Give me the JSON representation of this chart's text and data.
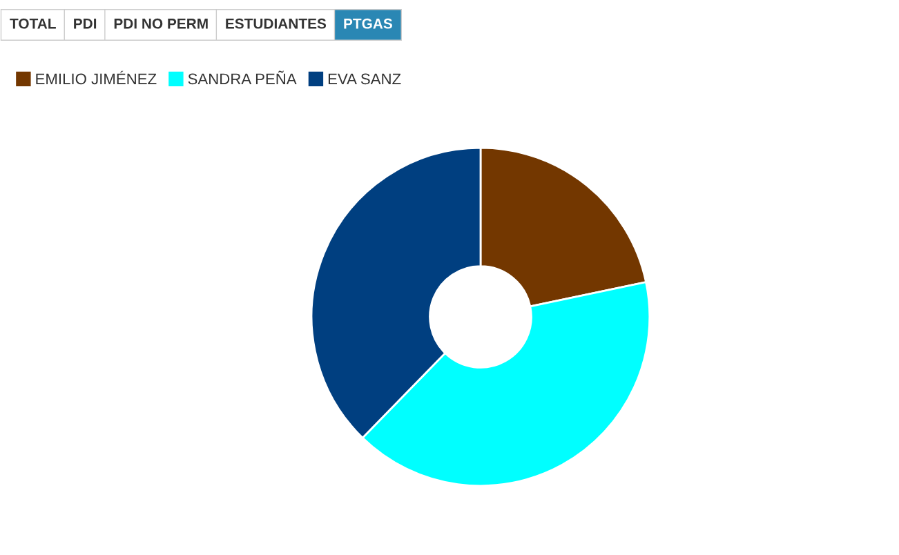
{
  "chart_data": {
    "type": "donut",
    "categories": [
      "EMILIO JIMÉNEZ",
      "SANDRA PEÑA",
      "EVA SANZ"
    ],
    "values": [
      21.7,
      40.6,
      37.7
    ],
    "colors": [
      "#733700",
      "#00ffff",
      "#003f80"
    ],
    "legend": "top left",
    "annotations": [
      "TOTAL",
      "PDI",
      "PDI NO PERM",
      "ESTUDIANTES",
      "PTGAS"
    ]
  }
}
